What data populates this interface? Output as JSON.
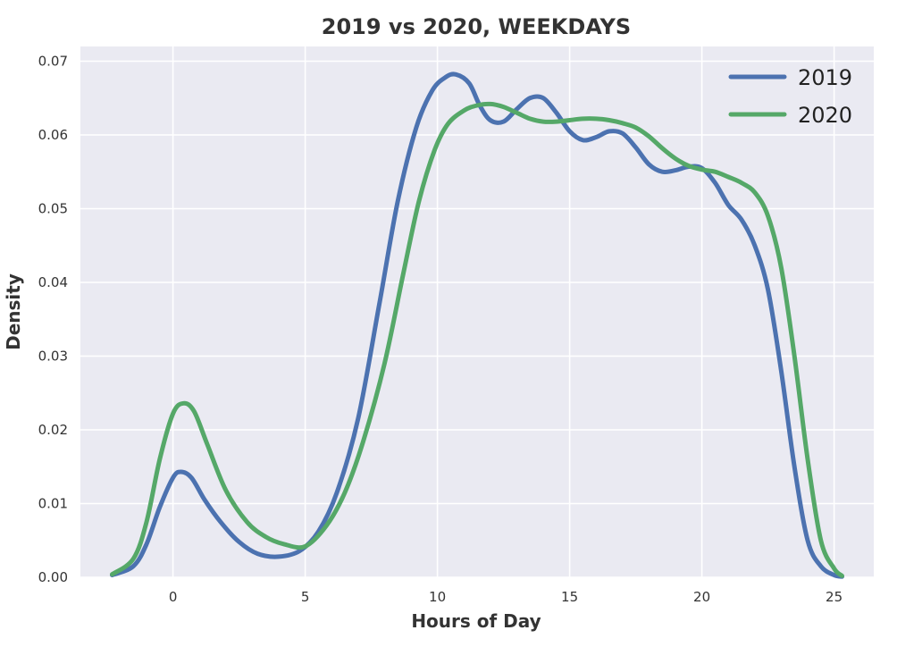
{
  "chart_data": {
    "type": "line",
    "title": "2019 vs 2020, WEEKDAYS",
    "xlabel": "Hours of Day",
    "ylabel": "Density",
    "xlim": [
      -3.5,
      26.5
    ],
    "ylim": [
      0,
      0.072
    ],
    "xticks": [
      0,
      5,
      10,
      15,
      20,
      25
    ],
    "xtick_labels": [
      "0",
      "5",
      "10",
      "15",
      "20",
      "25"
    ],
    "yticks": [
      0,
      0.01,
      0.02,
      0.03,
      0.04,
      0.05,
      0.06,
      0.07
    ],
    "ytick_labels": [
      "0.00",
      "0.01",
      "0.02",
      "0.03",
      "0.04",
      "0.05",
      "0.06",
      "0.07"
    ],
    "grid": true,
    "legend_position": "top-right",
    "series": [
      {
        "name": "2019",
        "color": "#4c72b0",
        "x": [
          -2.3,
          -1.5,
          -1.0,
          -0.5,
          0.0,
          0.3,
          0.7,
          1.2,
          1.8,
          2.5,
          3.2,
          4.0,
          4.8,
          5.5,
          6.2,
          7.0,
          7.8,
          8.5,
          9.2,
          9.8,
          10.3,
          10.7,
          11.2,
          11.6,
          12.0,
          12.5,
          13.0,
          13.5,
          14.0,
          14.5,
          15.0,
          15.5,
          16.0,
          16.5,
          17.0,
          17.5,
          18.0,
          18.5,
          19.0,
          19.5,
          20.0,
          20.5,
          21.0,
          21.5,
          22.0,
          22.5,
          23.0,
          23.5,
          24.0,
          24.5,
          25.0,
          25.3
        ],
        "y": [
          0.0003,
          0.0015,
          0.0045,
          0.0095,
          0.0135,
          0.0143,
          0.0135,
          0.0105,
          0.0075,
          0.0048,
          0.0032,
          0.0028,
          0.0036,
          0.0062,
          0.0115,
          0.0215,
          0.037,
          0.051,
          0.061,
          0.066,
          0.0678,
          0.0682,
          0.067,
          0.064,
          0.062,
          0.0618,
          0.0635,
          0.065,
          0.065,
          0.063,
          0.0605,
          0.0593,
          0.0597,
          0.0605,
          0.0602,
          0.0583,
          0.056,
          0.055,
          0.0552,
          0.0557,
          0.0555,
          0.0535,
          0.0505,
          0.0485,
          0.045,
          0.039,
          0.028,
          0.015,
          0.005,
          0.0015,
          0.0003,
          0.0001
        ]
      },
      {
        "name": "2020",
        "color": "#55a868",
        "x": [
          -2.3,
          -1.5,
          -1.0,
          -0.5,
          0.0,
          0.4,
          0.8,
          1.3,
          2.0,
          2.8,
          3.5,
          4.2,
          5.0,
          5.8,
          6.5,
          7.2,
          8.0,
          8.7,
          9.3,
          9.9,
          10.4,
          11.0,
          11.5,
          12.0,
          12.5,
          13.0,
          13.5,
          14.0,
          14.5,
          15.0,
          15.5,
          16.0,
          16.5,
          17.0,
          17.5,
          18.0,
          18.5,
          19.0,
          19.5,
          20.0,
          20.5,
          21.0,
          21.5,
          22.0,
          22.5,
          23.0,
          23.5,
          24.0,
          24.5,
          25.0,
          25.3
        ],
        "y": [
          0.0004,
          0.0025,
          0.0075,
          0.016,
          0.0222,
          0.0236,
          0.0225,
          0.018,
          0.0118,
          0.0075,
          0.0055,
          0.0045,
          0.0042,
          0.007,
          0.0115,
          0.0185,
          0.029,
          0.041,
          0.051,
          0.058,
          0.0615,
          0.0633,
          0.064,
          0.0642,
          0.0638,
          0.063,
          0.0622,
          0.0618,
          0.0618,
          0.062,
          0.0622,
          0.0622,
          0.062,
          0.0616,
          0.061,
          0.0598,
          0.0582,
          0.0568,
          0.0558,
          0.0553,
          0.055,
          0.0543,
          0.0535,
          0.0522,
          0.049,
          0.042,
          0.03,
          0.016,
          0.005,
          0.0012,
          0.0002
        ]
      }
    ]
  }
}
